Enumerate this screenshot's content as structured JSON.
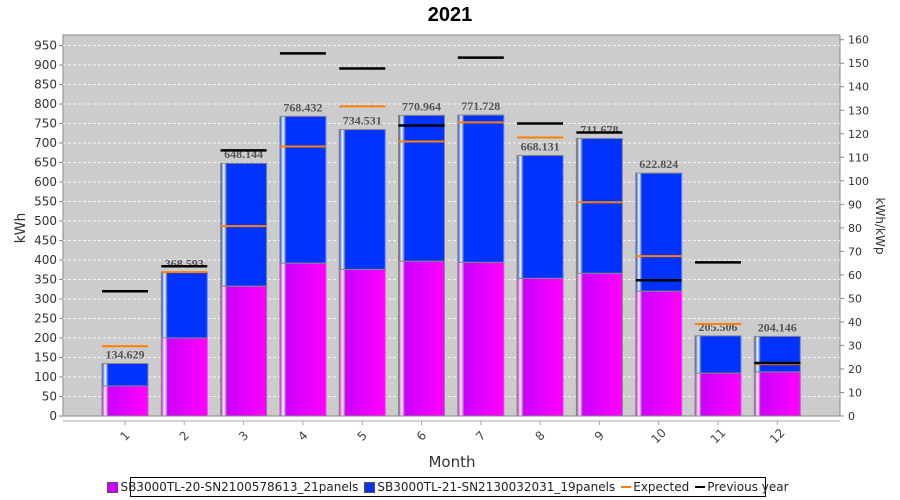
{
  "chart_data": {
    "type": "bar",
    "stacked": true,
    "title": "2021",
    "xlabel": "Month",
    "ylabel": "kWh",
    "ylabel_right": "kWh/kWp",
    "ylim": [
      0,
      977
    ],
    "ylim_right": [
      0,
      162
    ],
    "yticks": [
      0,
      50,
      100,
      150,
      200,
      250,
      300,
      350,
      400,
      450,
      500,
      550,
      600,
      650,
      700,
      750,
      800,
      850,
      900,
      950
    ],
    "yticks_right": [
      0,
      10,
      20,
      30,
      40,
      50,
      60,
      70,
      80,
      90,
      100,
      110,
      120,
      130,
      140,
      150,
      160
    ],
    "categories": [
      "1",
      "2",
      "3",
      "4",
      "5",
      "6",
      "7",
      "8",
      "9",
      "10",
      "11",
      "12"
    ],
    "series": [
      {
        "name": "SB3000TL-20-SN2100578613_21panels",
        "color": "#cc00ff",
        "values": [
          77,
          200,
          333,
          392,
          376,
          397,
          394,
          353,
          366,
          320,
          110,
          113
        ]
      },
      {
        "name": "SB3000TL-21-SN2130032031_19panels",
        "color": "#0033ff",
        "values": [
          57.629,
          168.593,
          315.144,
          376.432,
          358.531,
          373.964,
          377.728,
          315.131,
          345.678,
          302.824,
          95.506,
          91.146
        ]
      }
    ],
    "totals": [
      "134.629",
      "368.593",
      "648.144",
      "768.432",
      "734.531",
      "770.964",
      "771.728",
      "668.131",
      "711.678",
      "622.824",
      "205.506",
      "204.146"
    ],
    "lines": [
      {
        "name": "Expected",
        "color": "#ff8000",
        "values": [
          179,
          369,
          487,
          691,
          794,
          704,
          753,
          714,
          548,
          410,
          236,
          133
        ]
      },
      {
        "name": "Previous year",
        "color": "#000000",
        "values": [
          320,
          384,
          681,
          930,
          891,
          745,
          919,
          750,
          727,
          348,
          394,
          136
        ]
      }
    ],
    "grid": true,
    "legend_position": "bottom"
  }
}
